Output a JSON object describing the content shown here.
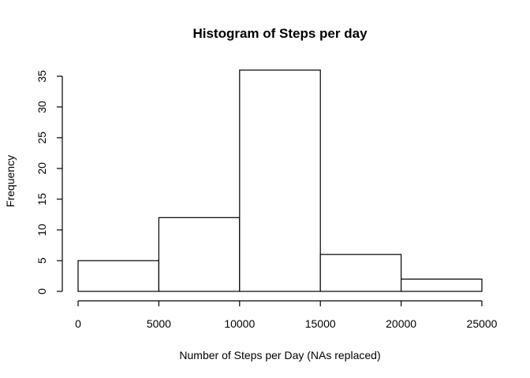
{
  "chart_data": {
    "type": "histogram",
    "title": "Histogram of Steps per day",
    "xlabel": "Number of Steps per Day (NAs replaced)",
    "ylabel": "Frequency",
    "bins": [
      {
        "from": 0,
        "to": 5000,
        "count": 5
      },
      {
        "from": 5000,
        "to": 10000,
        "count": 12
      },
      {
        "from": 10000,
        "to": 15000,
        "count": 36
      },
      {
        "from": 15000,
        "to": 20000,
        "count": 6
      },
      {
        "from": 20000,
        "to": 25000,
        "count": 2
      }
    ],
    "xlim": [
      0,
      25000
    ],
    "ylim": [
      0,
      36
    ],
    "xticks": [
      0,
      5000,
      10000,
      15000,
      20000,
      25000
    ],
    "yticks": [
      0,
      5,
      10,
      15,
      20,
      25,
      30,
      35
    ],
    "grid": false,
    "bar_fill": "#ffffff",
    "bar_stroke": "#000000"
  }
}
